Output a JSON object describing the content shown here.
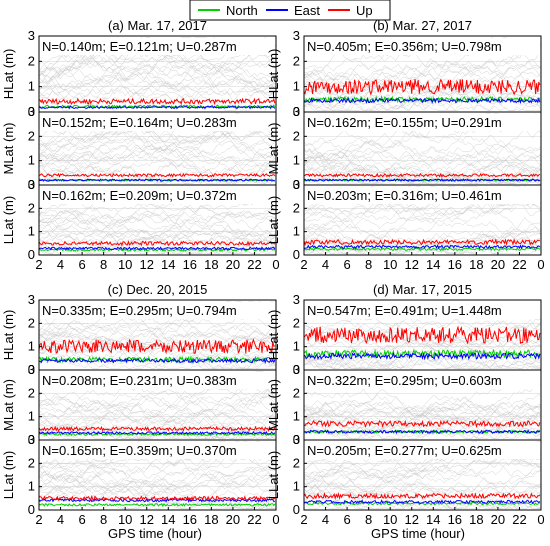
{
  "legend": {
    "entries": [
      {
        "name": "North",
        "color": "#00d000"
      },
      {
        "name": "East",
        "color": "#0000ff"
      },
      {
        "name": "Up",
        "color": "#ff0000"
      }
    ],
    "placement": "top-center"
  },
  "colors": {
    "background_traces": "#c8c8c8",
    "frame": "#000000"
  },
  "xlabel": "GPS time (hour)",
  "chart_data": [
    {
      "type": "line",
      "title": "(a) Mar. 17, 2017",
      "x_ticks": [
        "2",
        "4",
        "6",
        "8",
        "10",
        "12",
        "14",
        "16",
        "18",
        "20",
        "22",
        "0"
      ],
      "xlim": [
        2,
        24
      ],
      "rows": [
        {
          "ylabel": "HLat (m)",
          "stats": "N=0.140m; E=0.121m; U=0.287m",
          "ylim": [
            0,
            3
          ],
          "y_ticks": [
            0,
            1,
            2,
            3
          ],
          "series": [
            {
              "name": "North",
              "level": 0.22,
              "noise": 0.05
            },
            {
              "name": "East",
              "level": 0.18,
              "noise": 0.04
            },
            {
              "name": "Up",
              "level": 0.42,
              "noise": 0.1
            }
          ]
        },
        {
          "ylabel": "MLat (m)",
          "stats": "N=0.152m; E=0.164m; U=0.283m",
          "ylim": [
            0,
            3
          ],
          "y_ticks": [
            0,
            1,
            2,
            3
          ],
          "series": [
            {
              "name": "North",
              "level": 0.2,
              "noise": 0.04
            },
            {
              "name": "East",
              "level": 0.2,
              "noise": 0.04
            },
            {
              "name": "Up",
              "level": 0.4,
              "noise": 0.06
            }
          ]
        },
        {
          "ylabel": "LLat (m)",
          "stats": "N=0.162m; E=0.209m; U=0.372m",
          "ylim": [
            0,
            3
          ],
          "y_ticks": [
            0,
            1,
            2,
            3
          ],
          "series": [
            {
              "name": "North",
              "level": 0.22,
              "noise": 0.05
            },
            {
              "name": "East",
              "level": 0.28,
              "noise": 0.05
            },
            {
              "name": "Up",
              "level": 0.5,
              "noise": 0.08
            }
          ]
        }
      ]
    },
    {
      "type": "line",
      "title": "(b) Mar. 27, 2017",
      "x_ticks": [
        "2",
        "4",
        "6",
        "8",
        "10",
        "12",
        "14",
        "16",
        "18",
        "20",
        "22",
        "0"
      ],
      "xlim": [
        2,
        24
      ],
      "rows": [
        {
          "ylabel": "HLat (m)",
          "stats": "N=0.405m; E=0.356m; U=0.798m",
          "ylim": [
            0,
            3
          ],
          "y_ticks": [
            0,
            1,
            2,
            3
          ],
          "series": [
            {
              "name": "North",
              "level": 0.5,
              "noise": 0.1
            },
            {
              "name": "East",
              "level": 0.45,
              "noise": 0.08
            },
            {
              "name": "Up",
              "level": 1.0,
              "noise": 0.3
            }
          ]
        },
        {
          "ylabel": "MLat (m)",
          "stats": "N=0.162m; E=0.155m; U=0.291m",
          "ylim": [
            0,
            3
          ],
          "y_ticks": [
            0,
            1,
            2,
            3
          ],
          "series": [
            {
              "name": "North",
              "level": 0.2,
              "noise": 0.04
            },
            {
              "name": "East",
              "level": 0.2,
              "noise": 0.04
            },
            {
              "name": "Up",
              "level": 0.4,
              "noise": 0.06
            }
          ]
        },
        {
          "ylabel": "LLat (m)",
          "stats": "N=0.203m; E=0.316m; U=0.461m",
          "ylim": [
            0,
            3
          ],
          "y_ticks": [
            0,
            1,
            2,
            3
          ],
          "series": [
            {
              "name": "North",
              "level": 0.25,
              "noise": 0.05
            },
            {
              "name": "East",
              "level": 0.35,
              "noise": 0.06
            },
            {
              "name": "Up",
              "level": 0.55,
              "noise": 0.1
            }
          ]
        }
      ]
    },
    {
      "type": "line",
      "title": "(c) Dec. 20, 2015",
      "x_ticks": [
        "2",
        "4",
        "6",
        "8",
        "10",
        "12",
        "14",
        "16",
        "18",
        "20",
        "22",
        "0"
      ],
      "xlim": [
        2,
        24
      ],
      "rows": [
        {
          "ylabel": "HLat (m)",
          "stats": "N=0.335m; E=0.295m; U=0.794m",
          "ylim": [
            0,
            3
          ],
          "y_ticks": [
            0,
            1,
            2,
            3
          ],
          "series": [
            {
              "name": "North",
              "level": 0.45,
              "noise": 0.1
            },
            {
              "name": "East",
              "level": 0.4,
              "noise": 0.08
            },
            {
              "name": "Up",
              "level": 1.0,
              "noise": 0.3
            }
          ]
        },
        {
          "ylabel": "MLat (m)",
          "stats": "N=0.208m; E=0.231m; U=0.383m",
          "ylim": [
            0,
            3
          ],
          "y_ticks": [
            0,
            1,
            2,
            3
          ],
          "series": [
            {
              "name": "North",
              "level": 0.25,
              "noise": 0.05
            },
            {
              "name": "East",
              "level": 0.3,
              "noise": 0.05
            },
            {
              "name": "Up",
              "level": 0.48,
              "noise": 0.08
            }
          ]
        },
        {
          "ylabel": "LLat (m)",
          "stats": "N=0.165m; E=0.359m; U=0.370m",
          "ylim": [
            0,
            3
          ],
          "y_ticks": [
            0,
            1,
            2,
            3
          ],
          "series": [
            {
              "name": "North",
              "level": 0.22,
              "noise": 0.05
            },
            {
              "name": "East",
              "level": 0.42,
              "noise": 0.06
            },
            {
              "name": "Up",
              "level": 0.5,
              "noise": 0.08
            }
          ]
        }
      ]
    },
    {
      "type": "line",
      "title": "(d) Mar. 17, 2015",
      "x_ticks": [
        "2",
        "4",
        "6",
        "8",
        "10",
        "12",
        "14",
        "16",
        "18",
        "20",
        "22",
        "0"
      ],
      "xlim": [
        2,
        24
      ],
      "rows": [
        {
          "ylabel": "HLat (m)",
          "stats": "N=0.547m; E=0.491m; U=1.448m",
          "ylim": [
            0,
            3
          ],
          "y_ticks": [
            0,
            1,
            2,
            3
          ],
          "series": [
            {
              "name": "North",
              "level": 0.7,
              "noise": 0.15
            },
            {
              "name": "East",
              "level": 0.6,
              "noise": 0.12
            },
            {
              "name": "Up",
              "level": 1.5,
              "noise": 0.35
            }
          ]
        },
        {
          "ylabel": "MLat (m)",
          "stats": "N=0.322m; E=0.295m; U=0.603m",
          "ylim": [
            0,
            3
          ],
          "y_ticks": [
            0,
            1,
            2,
            3
          ],
          "series": [
            {
              "name": "North",
              "level": 0.35,
              "noise": 0.06
            },
            {
              "name": "East",
              "level": 0.35,
              "noise": 0.06
            },
            {
              "name": "Up",
              "level": 0.7,
              "noise": 0.12
            }
          ]
        },
        {
          "ylabel": "LLat (m)",
          "stats": "N=0.205m; E=0.277m; U=0.625m",
          "ylim": [
            0,
            3
          ],
          "y_ticks": [
            0,
            1,
            2,
            3
          ],
          "series": [
            {
              "name": "North",
              "level": 0.28,
              "noise": 0.05
            },
            {
              "name": "East",
              "level": 0.35,
              "noise": 0.06
            },
            {
              "name": "Up",
              "level": 0.6,
              "noise": 0.1
            }
          ]
        }
      ]
    }
  ]
}
